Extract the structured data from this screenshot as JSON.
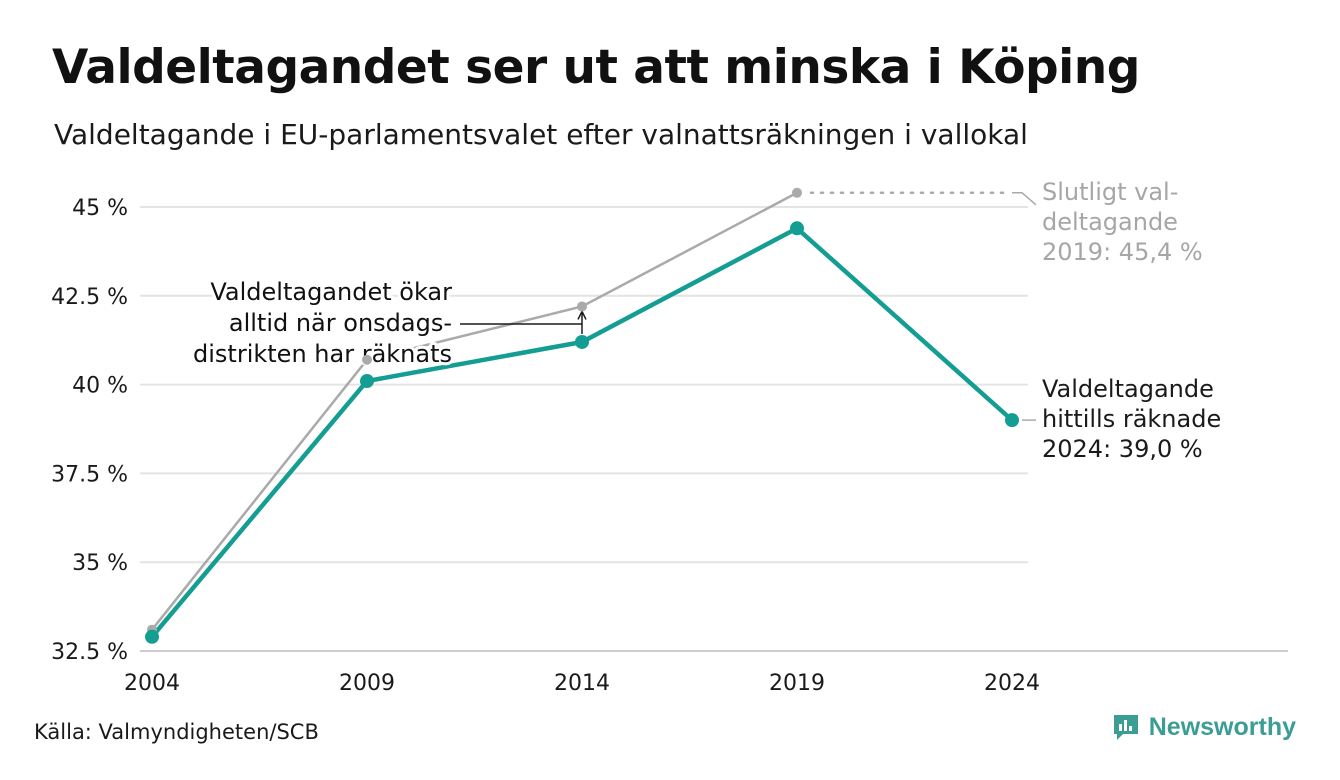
{
  "header": {
    "title": "Valdeltagandet ser ut att minska i Köping",
    "subtitle": "Valdeltagande i EU-parlamentsvalet efter valnattsräkningen i vallokal"
  },
  "footer": {
    "source": "Källa: Valmyndigheten/SCB",
    "brand": "Newsworthy"
  },
  "colors": {
    "accent": "#149e93",
    "final": "#aaaaaa",
    "grid": "#e4e4e4",
    "brand": "#3b9d93"
  },
  "icons": {
    "brand": "bar-chart-speech-icon"
  },
  "chart_data": {
    "type": "line",
    "x": [
      2004,
      2009,
      2014,
      2019,
      2024
    ],
    "ylim": [
      32.5,
      46
    ],
    "yticks": [
      32.5,
      35,
      37.5,
      40,
      42.5,
      45
    ],
    "ytick_labels": [
      "32.5 %",
      "35 %",
      "37.5 %",
      "40 %",
      "42.5 %",
      "45 %"
    ],
    "xtick_labels": [
      "2004",
      "2009",
      "2014",
      "2019",
      "2024"
    ],
    "grid": true,
    "series": [
      {
        "key": "final",
        "values": [
          33.1,
          40.7,
          42.2,
          45.4,
          null
        ]
      },
      {
        "key": "counted",
        "values": [
          32.9,
          40.1,
          41.2,
          44.4,
          39.0
        ]
      }
    ],
    "annotations": {
      "final_2019": [
        "Slutligt val-",
        "deltagande",
        "2019: 45,4 %"
      ],
      "counted_2024": [
        "Valdeltagande",
        "hittills räknade",
        "2024: 39,0 %"
      ],
      "wednesday": [
        "Valdeltagandet ökar",
        "alltid när onsdags-",
        "distrikten har räknats"
      ]
    }
  }
}
